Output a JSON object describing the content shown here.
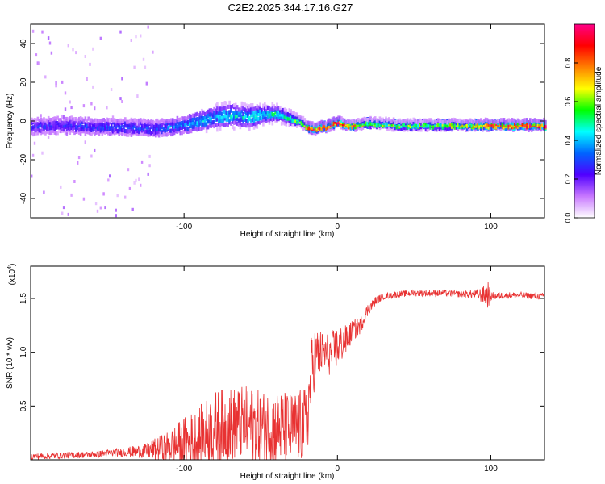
{
  "title": "C2E2.2025.344.17.16.G27",
  "chart_data": [
    {
      "type": "heatmap",
      "xlabel": "Height of straight line (km)",
      "ylabel": "Frequency (Hz)",
      "xlim": [
        -200,
        135
      ],
      "ylim": [
        -50,
        50
      ],
      "xticks": [
        {
          "value": -100,
          "label": "-100"
        },
        {
          "value": 0,
          "label": "0"
        },
        {
          "value": 100,
          "label": "100"
        }
      ],
      "yticks": [
        {
          "value": -40,
          "label": "-40"
        },
        {
          "value": -20,
          "label": "-20"
        },
        {
          "value": 0,
          "label": "0"
        },
        {
          "value": 20,
          "label": "20"
        },
        {
          "value": 40,
          "label": "40"
        }
      ],
      "colorbar": {
        "label": "Normalized spectral amplitude",
        "range": [
          0,
          1
        ],
        "ticks": [
          {
            "value": 0.0,
            "label": "0.0"
          },
          {
            "value": 0.2,
            "label": "0.2"
          },
          {
            "value": 0.4,
            "label": "0.4"
          },
          {
            "value": 0.6,
            "label": "0.6"
          },
          {
            "value": 0.8,
            "label": "0.8"
          }
        ],
        "colors": [
          "#ffffff",
          "#c878ff",
          "#5000ff",
          "#0064ff",
          "#00ffff",
          "#00ff00",
          "#ffff00",
          "#ff8000",
          "#ff0000",
          "#ff0088"
        ]
      },
      "ridge": {
        "description": "dominant frequency ridge vs height",
        "x": [
          -200,
          -180,
          -160,
          -140,
          -120,
          -100,
          -90,
          -80,
          -70,
          -60,
          -50,
          -40,
          -30,
          -25,
          -20,
          -15,
          -10,
          -5,
          0,
          5,
          10,
          20,
          40,
          60,
          80,
          100,
          120,
          135
        ],
        "freq": [
          -3,
          -2,
          -3,
          -3,
          -4,
          -2,
          0,
          2,
          3,
          2,
          3,
          4,
          1,
          0,
          -3,
          -4,
          -3,
          -2,
          0,
          -2,
          -2,
          -1,
          -2,
          -2,
          -2,
          -2,
          -2,
          -2
        ],
        "amplitude": [
          0.25,
          0.25,
          0.28,
          0.28,
          0.28,
          0.35,
          0.4,
          0.4,
          0.42,
          0.42,
          0.45,
          0.45,
          0.5,
          0.6,
          0.85,
          0.9,
          0.9,
          0.95,
          0.95,
          0.9,
          0.8,
          0.6,
          0.6,
          0.62,
          0.7,
          0.9,
          0.92,
          0.95
        ],
        "halfwidth": [
          5,
          5,
          5,
          5,
          5,
          5,
          5,
          6,
          6,
          6,
          5,
          4,
          3,
          2,
          2,
          2,
          2,
          2,
          2,
          2,
          2,
          2,
          2,
          2,
          2,
          2,
          2,
          2
        ]
      }
    },
    {
      "type": "line",
      "xlabel": "Height of straight line (km)",
      "ylabel": "SNR (10 * v/v)",
      "yexponent": "(x10",
      "yexponent_power": "4",
      "yexponent_close": ")",
      "xlim": [
        -200,
        135
      ],
      "ylim": [
        0,
        18000
      ],
      "color": "#e83232",
      "xticks": [
        {
          "value": -100,
          "label": "-100"
        },
        {
          "value": 0,
          "label": "0"
        },
        {
          "value": 100,
          "label": "100"
        }
      ],
      "yticks": [
        {
          "value": 5000,
          "label": "0.5"
        },
        {
          "value": 10000,
          "label": "1.0"
        },
        {
          "value": 15000,
          "label": "1.5"
        }
      ],
      "series": [
        {
          "name": "SNR",
          "x": [
            -200,
            -180,
            -160,
            -140,
            -125,
            -110,
            -100,
            -90,
            -80,
            -70,
            -60,
            -50,
            -40,
            -30,
            -25,
            -20,
            -17,
            -15,
            -10,
            -5,
            0,
            5,
            10,
            15,
            20,
            25,
            30,
            40,
            50,
            60,
            70,
            80,
            90,
            95,
            98,
            100,
            110,
            120,
            130,
            135
          ],
          "values": [
            300,
            400,
            500,
            700,
            800,
            1200,
            1500,
            2000,
            3000,
            3300,
            3400,
            3000,
            3000,
            2800,
            3000,
            3300,
            8000,
            9500,
            10000,
            9800,
            10500,
            11000,
            12000,
            12500,
            14000,
            14800,
            15200,
            15400,
            15500,
            15500,
            15500,
            15400,
            15400,
            15300,
            15500,
            15200,
            15300,
            15300,
            15200,
            15200
          ],
          "noise": [
            300,
            300,
            300,
            400,
            700,
            1500,
            2500,
            3000,
            3500,
            3500,
            3500,
            3500,
            3500,
            3500,
            3500,
            3500,
            3500,
            3000,
            2000,
            2000,
            2000,
            1500,
            1000,
            800,
            600,
            400,
            300,
            300,
            300,
            300,
            300,
            300,
            400,
            800,
            1500,
            400,
            300,
            300,
            300,
            300
          ]
        }
      ]
    }
  ]
}
